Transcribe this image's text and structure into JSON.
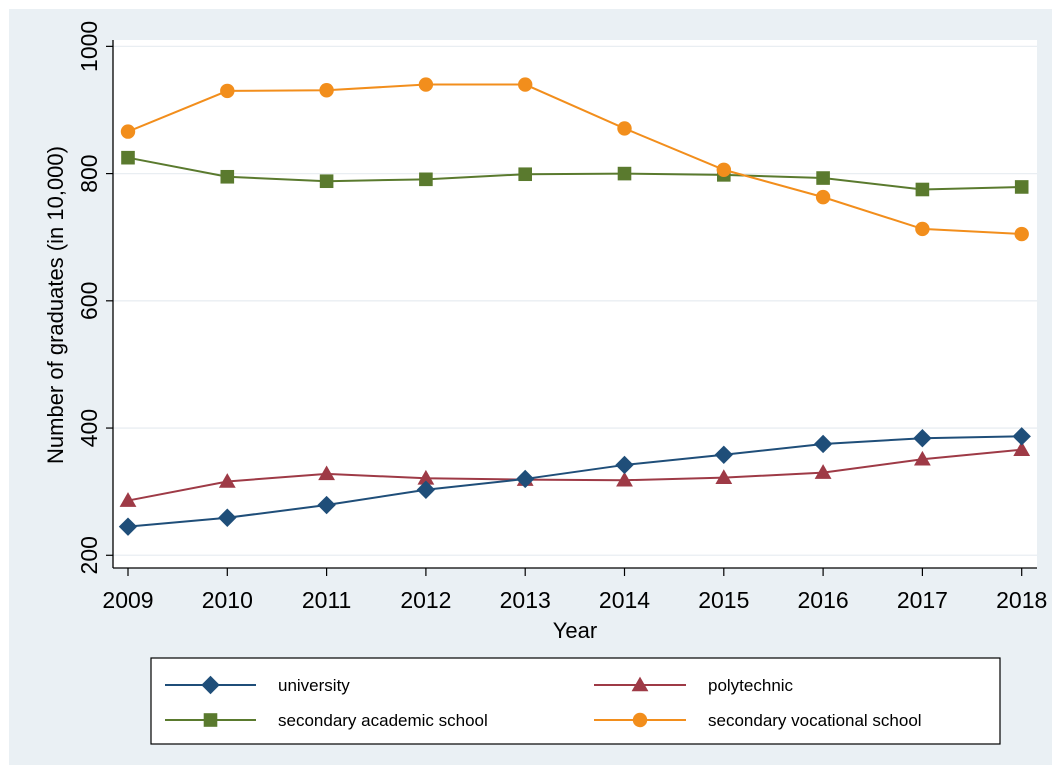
{
  "chart_data": {
    "type": "line",
    "title": "",
    "xlabel": "Year",
    "ylabel": "Number of graduates (in 10,000)",
    "categories": [
      "2009",
      "2010",
      "2011",
      "2012",
      "2013",
      "2014",
      "2015",
      "2016",
      "2017",
      "2018"
    ],
    "yticks": [
      "200",
      "400",
      "600",
      "800",
      "1000"
    ],
    "ylim": [
      180,
      1010
    ],
    "grid": true,
    "legend_position": "bottom",
    "series": [
      {
        "name": "university",
        "color": "#1f4e79",
        "marker": "diamond",
        "values": [
          245,
          259,
          279,
          303,
          320,
          342,
          358,
          375,
          384,
          387
        ]
      },
      {
        "name": "polytechnic",
        "color": "#9e3a46",
        "marker": "triangle",
        "values": [
          286,
          316,
          328,
          321,
          319,
          318,
          322,
          330,
          351,
          366
        ]
      },
      {
        "name": "secondary academic school",
        "color": "#5a7a2e",
        "marker": "square",
        "values": [
          825,
          795,
          788,
          791,
          799,
          800,
          798,
          793,
          775,
          779
        ]
      },
      {
        "name": "secondary vocational school",
        "color": "#f28e1c",
        "marker": "circle",
        "values": [
          866,
          930,
          931,
          940,
          940,
          871,
          806,
          763,
          713,
          705
        ]
      }
    ]
  }
}
